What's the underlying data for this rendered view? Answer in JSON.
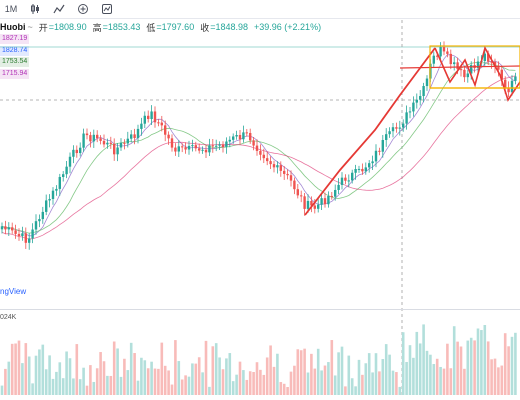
{
  "toolbar": {
    "interval": "1M",
    "buttons": [
      "candle-style-icon",
      "indicators-icon",
      "compare-icon",
      "chart-type-icon"
    ]
  },
  "legend": {
    "symbol_fragment": "Huobi",
    "dropdown": "~",
    "open_label": "开",
    "open_value": "=1808.90",
    "high_label": "高",
    "high_value": "=1853.43",
    "low_label": "低",
    "low_value": "=1797.60",
    "close_label": "收",
    "close_value": "=1848.98",
    "change": "+39.96 (+2.21%)"
  },
  "ma_tags": [
    {
      "text": "1827.19",
      "color": "#b233b7"
    },
    {
      "text": "1828.74",
      "color": "#2962ff"
    },
    {
      "text": "1753.54",
      "color": "#2e7d32"
    },
    {
      "text": "1715.94",
      "color": "#b233b7"
    }
  ],
  "watermark": "ngView",
  "volume_label": "024K",
  "colors": {
    "up": "#26a69a",
    "down": "#ef5350",
    "vol_up": "#b2dfdb",
    "vol_down": "#f8bbb9",
    "trend": "#e53935",
    "channel": "#f5b300"
  }
}
